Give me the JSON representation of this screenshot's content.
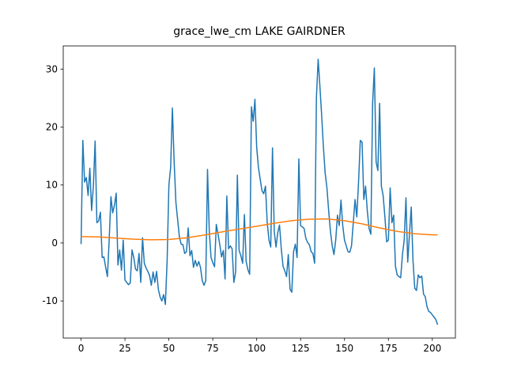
{
  "chart_data": {
    "type": "line",
    "title": "grace_lwe_cm LAKE GAIRDNER",
    "series": [
      {
        "color": "#1f77b4",
        "x": [
          0,
          1,
          2,
          3,
          4,
          5,
          6,
          7,
          8,
          9,
          10,
          11,
          12,
          13,
          14,
          15,
          16,
          17,
          18,
          19,
          20,
          21,
          22,
          23,
          24,
          25,
          26,
          27,
          28,
          29,
          30,
          31,
          32,
          33,
          34,
          35,
          36,
          37,
          38,
          39,
          40,
          41,
          42,
          43,
          44,
          45,
          46,
          47,
          48,
          49,
          50,
          51,
          52,
          53,
          54,
          55,
          56,
          57,
          58,
          59,
          60,
          61,
          62,
          63,
          64,
          65,
          66,
          67,
          68,
          69,
          70,
          71,
          72,
          73,
          74,
          75,
          76,
          77,
          78,
          79,
          80,
          81,
          82,
          83,
          84,
          85,
          86,
          87,
          88,
          89,
          90,
          91,
          92,
          93,
          94,
          95,
          96,
          97,
          98,
          99,
          100,
          101,
          102,
          103,
          104,
          105,
          106,
          107,
          108,
          109,
          110,
          111,
          112,
          113,
          114,
          115,
          116,
          117,
          118,
          119,
          120,
          121,
          122,
          123,
          124,
          125,
          126,
          127,
          128,
          129,
          130,
          131,
          132,
          133,
          134,
          135,
          136,
          137,
          138,
          139,
          140,
          141,
          142,
          143,
          144,
          145,
          146,
          147,
          148,
          149,
          150,
          151,
          152,
          153,
          154,
          155,
          156,
          157,
          158,
          159,
          160,
          161,
          162,
          163,
          164,
          165,
          166,
          167,
          168,
          169,
          170,
          171,
          172,
          173,
          174,
          175,
          176,
          177,
          178,
          179,
          180,
          181,
          182,
          183,
          184,
          185,
          186,
          187,
          188,
          189,
          190,
          191,
          192,
          193,
          194,
          195,
          196,
          197,
          198,
          199,
          200,
          201,
          202,
          203
        ],
        "values": [
          -0.2,
          17.7,
          10.5,
          11.3,
          8.2,
          12.9,
          5.6,
          9.8,
          17.6,
          3.5,
          3.8,
          5.3,
          -2.5,
          -2.4,
          -4.2,
          -5.8,
          0.5,
          8.0,
          5.2,
          6.5,
          8.6,
          -3.8,
          -1.2,
          -4.7,
          0.5,
          -6.4,
          -6.8,
          -7.2,
          -6.9,
          -1.2,
          -2.5,
          -4.5,
          -4.8,
          -1.8,
          -6.8,
          0.9,
          -3.5,
          -4.3,
          -4.9,
          -5.6,
          -7.3,
          -5.0,
          -6.8,
          -4.9,
          -8.0,
          -9.3,
          -10.0,
          -8.9,
          -10.6,
          -3.0,
          10.0,
          13.0,
          23.3,
          14.0,
          7.0,
          4.0,
          1.0,
          -0.2,
          -0.3,
          -1.8,
          -1.5,
          2.6,
          -2.2,
          -1.3,
          -4.2,
          -3.0,
          -4.0,
          -3.2,
          -4.2,
          -6.5,
          -7.3,
          -6.5,
          12.7,
          2.0,
          -2.5,
          -3.4,
          -4.1,
          3.2,
          1.5,
          -0.3,
          -2.4,
          -1.3,
          -6.2,
          8.1,
          -1.0,
          -0.5,
          -1.0,
          -6.8,
          -5.0,
          11.7,
          -1.3,
          -2.2,
          -3.5,
          4.9,
          -3.2,
          -4.6,
          -5.4,
          23.5,
          21.0,
          24.8,
          16.5,
          13.0,
          11.0,
          9.0,
          8.5,
          9.8,
          3.5,
          0.5,
          -0.7,
          16.4,
          2.0,
          -0.7,
          1.8,
          3.1,
          -1.0,
          -4.0,
          -4.8,
          -5.8,
          -2.0,
          -8.0,
          -8.5,
          -1.5,
          -0.2,
          -2.5,
          14.5,
          3.0,
          2.8,
          2.5,
          0.8,
          0.1,
          -0.3,
          -1.5,
          -1.8,
          -3.5,
          25.0,
          31.7,
          27.0,
          22.0,
          16.5,
          12.0,
          9.5,
          5.5,
          2.0,
          -0.5,
          -2.0,
          0.5,
          4.8,
          3.0,
          7.4,
          3.0,
          0.5,
          -0.5,
          -1.5,
          -1.6,
          -0.5,
          3.5,
          7.5,
          4.5,
          10.5,
          17.7,
          17.4,
          7.5,
          9.8,
          5.5,
          2.5,
          1.5,
          24.0,
          30.2,
          14.0,
          12.5,
          24.1,
          9.8,
          8.2,
          4.5,
          0.2,
          0.5,
          9.5,
          3.5,
          4.8,
          -4.0,
          -5.5,
          -5.8,
          -6.0,
          -2.0,
          0.5,
          7.8,
          -3.3,
          1.5,
          6.2,
          -3.0,
          -7.8,
          -8.2,
          -5.5,
          -6.0,
          -5.7,
          -8.8,
          -9.3,
          -11.0,
          -11.8,
          -12.0,
          -12.4,
          -12.8,
          -13.2,
          -14.1
        ]
      },
      {
        "color": "#ff7f0e",
        "x": [
          0,
          10,
          20,
          30,
          40,
          50,
          60,
          70,
          80,
          90,
          100,
          110,
          120,
          130,
          140,
          150,
          160,
          170,
          180,
          190,
          200,
          203
        ],
        "values": [
          1.1,
          1.05,
          0.85,
          0.65,
          0.55,
          0.6,
          0.9,
          1.35,
          1.9,
          2.4,
          2.9,
          3.4,
          3.85,
          4.1,
          4.15,
          3.85,
          3.3,
          2.6,
          2.0,
          1.6,
          1.4,
          1.4
        ]
      }
    ],
    "xlim": [
      -10.15,
      213.15
    ],
    "ylim": [
      -16.4,
      34.0
    ],
    "xticks": [
      0,
      25,
      50,
      75,
      100,
      125,
      150,
      175,
      200
    ],
    "yticks": [
      -10,
      0,
      10,
      20,
      30
    ]
  }
}
